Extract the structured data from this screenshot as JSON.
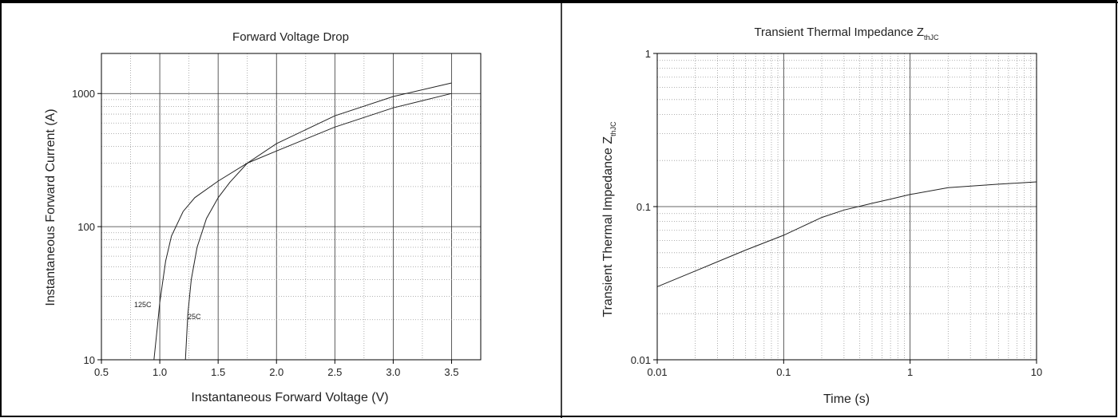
{
  "chart_data": [
    {
      "type": "line",
      "title": "Forward Voltage Drop",
      "xlabel": "Instantaneous Forward Voltage (V)",
      "ylabel": "Instantaneous Forward Current (A)",
      "xlim": [
        0.5,
        3.75
      ],
      "ylim": [
        10,
        2000
      ],
      "yscale": "log",
      "grid": true,
      "x_ticks": [
        "0.5",
        "1.0",
        "1.5",
        "2.0",
        "2.5",
        "3.0",
        "3.5"
      ],
      "y_ticks": [
        "10",
        "100",
        "1000"
      ],
      "series": [
        {
          "name": "125C",
          "x": [
            0.95,
            0.98,
            1.0,
            1.05,
            1.1,
            1.2,
            1.3,
            1.5,
            1.75,
            2.0,
            2.5,
            3.0,
            3.5
          ],
          "y": [
            10,
            18,
            27,
            55,
            85,
            130,
            165,
            220,
            300,
            370,
            560,
            780,
            1000
          ]
        },
        {
          "name": "25C",
          "x": [
            1.22,
            1.24,
            1.27,
            1.32,
            1.4,
            1.5,
            1.6,
            1.75,
            2.0,
            2.5,
            3.0,
            3.5
          ],
          "y": [
            10,
            22,
            40,
            70,
            115,
            165,
            215,
            300,
            420,
            680,
            950,
            1200
          ]
        }
      ],
      "annotations": [
        "125C",
        "25C"
      ]
    },
    {
      "type": "line",
      "title": "Transient Thermal Impedance Z",
      "title_sub": "thJC",
      "xlabel": "Time (s)",
      "ylabel": "Transient Thermal Impedance Z",
      "ylabel_sub": "thJC",
      "xlim": [
        0.01,
        10
      ],
      "ylim": [
        0.01,
        1
      ],
      "xscale": "log",
      "yscale": "log",
      "grid": true,
      "x_ticks": [
        "0.01",
        "0.1",
        "1",
        "10"
      ],
      "y_ticks": [
        "0.01",
        "0.1",
        "1"
      ],
      "series": [
        {
          "x": [
            0.01,
            0.02,
            0.05,
            0.1,
            0.2,
            0.3,
            0.5,
            0.7,
            1,
            2,
            5,
            10
          ],
          "y": [
            0.03,
            0.038,
            0.052,
            0.065,
            0.085,
            0.095,
            0.105,
            0.112,
            0.12,
            0.133,
            0.14,
            0.145
          ]
        }
      ]
    }
  ]
}
